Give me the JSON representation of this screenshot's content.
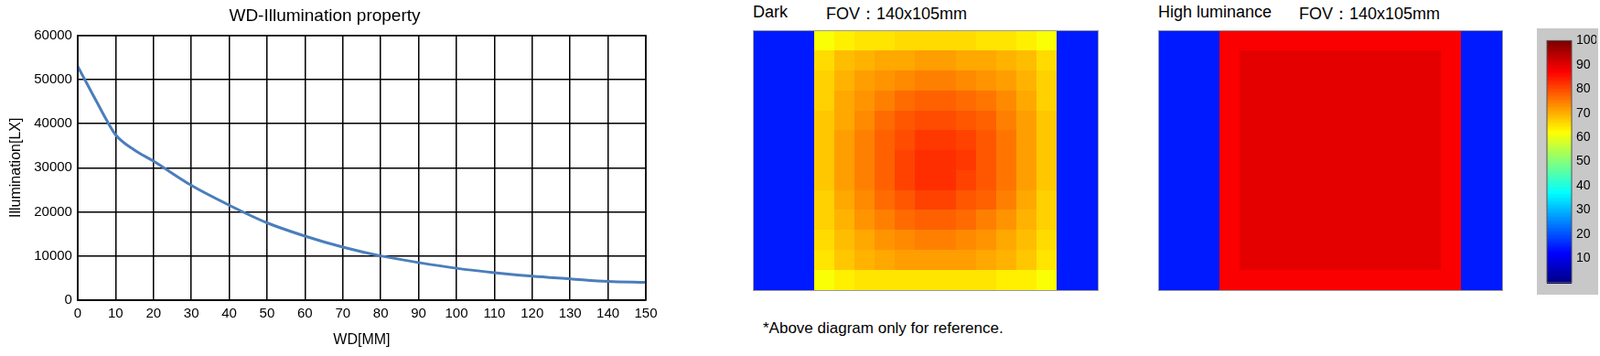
{
  "chart_data": [
    {
      "type": "line",
      "title": "WD-Illumination property",
      "x_label": "WD[MM]",
      "y_label": "Illumination[LX]",
      "x": [
        0,
        2.5,
        5,
        7.5,
        10,
        15,
        20,
        30,
        40,
        50,
        60,
        70,
        80,
        90,
        100,
        110,
        120,
        130,
        140,
        150
      ],
      "values": [
        53000,
        49000,
        45000,
        41000,
        37500,
        34000,
        31500,
        26000,
        21500,
        17500,
        14500,
        12000,
        10000,
        8500,
        7200,
        6200,
        5400,
        4800,
        4200,
        4000
      ],
      "color": "#4a7ebb",
      "xlim": [
        0,
        150
      ],
      "xticks": [
        0,
        10,
        20,
        30,
        40,
        50,
        60,
        70,
        80,
        90,
        100,
        110,
        120,
        130,
        140,
        150
      ],
      "ylim": [
        0,
        60000
      ],
      "yticks": [
        0,
        10000,
        20000,
        30000,
        40000,
        50000,
        60000
      ],
      "grid": true
    },
    {
      "type": "heatmap",
      "title": "Dark",
      "subtitle": "FOV：140x105mm",
      "tick_labels": false,
      "cells": [
        [
          15,
          15,
          15,
          62,
          64,
          65,
          65,
          66,
          66,
          66,
          66,
          65,
          65,
          64,
          62,
          15,
          15
        ],
        [
          15,
          15,
          15,
          66,
          69,
          70,
          71,
          71,
          72,
          72,
          71,
          71,
          70,
          69,
          66,
          15,
          15
        ],
        [
          15,
          15,
          15,
          67,
          70,
          72,
          73,
          74,
          75,
          75,
          74,
          73,
          72,
          70,
          67,
          15,
          15
        ],
        [
          15,
          15,
          15,
          67,
          71,
          73,
          75,
          77,
          78,
          78,
          77,
          76,
          74,
          71,
          67,
          15,
          15
        ],
        [
          15,
          15,
          15,
          68,
          71,
          74,
          77,
          79,
          80,
          80,
          79,
          78,
          75,
          72,
          68,
          15,
          15
        ],
        [
          15,
          15,
          15,
          68,
          72,
          75,
          78,
          80,
          82,
          82,
          81,
          79,
          76,
          72,
          68,
          15,
          15
        ],
        [
          15,
          15,
          15,
          68,
          72,
          75,
          78,
          81,
          83,
          83,
          82,
          79,
          76,
          72,
          68,
          15,
          15
        ],
        [
          15,
          15,
          15,
          68,
          72,
          75,
          78,
          81,
          83,
          83,
          81,
          79,
          76,
          72,
          68,
          15,
          15
        ],
        [
          15,
          15,
          15,
          67,
          71,
          74,
          77,
          79,
          81,
          81,
          79,
          78,
          75,
          71,
          67,
          15,
          15
        ],
        [
          15,
          15,
          15,
          67,
          70,
          73,
          75,
          77,
          78,
          78,
          77,
          75,
          73,
          70,
          67,
          15,
          15
        ],
        [
          15,
          15,
          15,
          66,
          69,
          71,
          73,
          74,
          75,
          75,
          74,
          73,
          71,
          69,
          66,
          15,
          15
        ],
        [
          15,
          15,
          15,
          65,
          68,
          70,
          71,
          72,
          72,
          72,
          72,
          71,
          70,
          68,
          65,
          15,
          15
        ],
        [
          15,
          15,
          15,
          62,
          64,
          65,
          65,
          65,
          65,
          65,
          65,
          65,
          64,
          64,
          62,
          15,
          15
        ]
      ]
    },
    {
      "type": "heatmap",
      "title": "High luminance",
      "subtitle": "FOV：140x105mm",
      "tick_labels": false,
      "cells": [
        [
          15,
          15,
          15,
          88,
          88,
          88,
          88,
          88,
          88,
          88,
          88,
          88,
          88,
          88,
          88,
          15,
          15
        ],
        [
          15,
          15,
          15,
          88,
          90,
          90,
          90,
          90,
          90,
          90,
          90,
          90,
          90,
          90,
          88,
          15,
          15
        ],
        [
          15,
          15,
          15,
          88,
          90,
          90,
          90,
          90,
          90,
          90,
          90,
          90,
          90,
          90,
          88,
          15,
          15
        ],
        [
          15,
          15,
          15,
          88,
          90,
          90,
          90,
          90,
          90,
          90,
          90,
          90,
          90,
          90,
          88,
          15,
          15
        ],
        [
          15,
          15,
          15,
          88,
          90,
          90,
          90,
          90,
          90,
          90,
          90,
          90,
          90,
          90,
          88,
          15,
          15
        ],
        [
          15,
          15,
          15,
          88,
          90,
          90,
          90,
          90,
          90,
          90,
          90,
          90,
          90,
          90,
          88,
          15,
          15
        ],
        [
          15,
          15,
          15,
          88,
          90,
          90,
          90,
          90,
          90,
          90,
          90,
          90,
          90,
          90,
          88,
          15,
          15
        ],
        [
          15,
          15,
          15,
          88,
          90,
          90,
          90,
          90,
          90,
          90,
          90,
          90,
          90,
          90,
          88,
          15,
          15
        ],
        [
          15,
          15,
          15,
          88,
          90,
          90,
          90,
          90,
          90,
          90,
          90,
          90,
          90,
          90,
          88,
          15,
          15
        ],
        [
          15,
          15,
          15,
          88,
          90,
          90,
          90,
          90,
          90,
          90,
          90,
          90,
          90,
          90,
          88,
          15,
          15
        ],
        [
          15,
          15,
          15,
          88,
          90,
          90,
          90,
          90,
          90,
          90,
          90,
          90,
          90,
          90,
          88,
          15,
          15
        ],
        [
          15,
          15,
          15,
          88,
          90,
          90,
          90,
          90,
          90,
          90,
          90,
          90,
          90,
          90,
          88,
          15,
          15
        ],
        [
          15,
          15,
          15,
          88,
          88,
          88,
          88,
          88,
          88,
          88,
          88,
          88,
          88,
          88,
          88,
          15,
          15
        ]
      ]
    }
  ],
  "color_bar": {
    "range": [
      0,
      100
    ],
    "ticks": [
      10,
      20,
      30,
      40,
      50,
      60,
      70,
      80,
      90,
      100
    ]
  },
  "note": "*Above diagram only for reference."
}
